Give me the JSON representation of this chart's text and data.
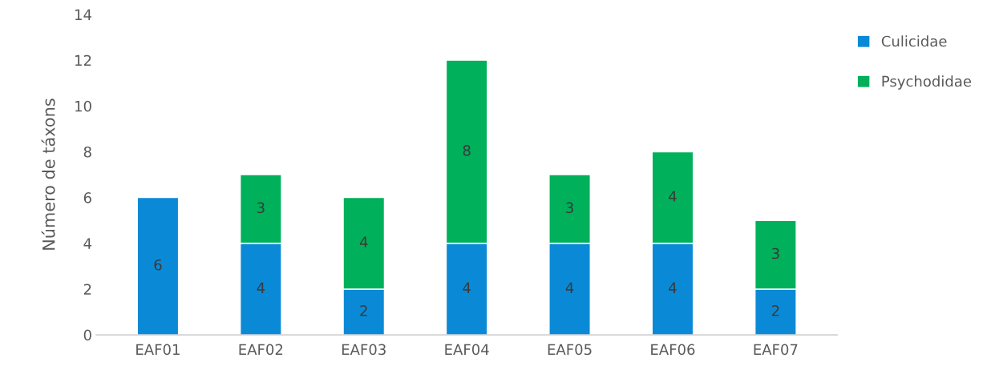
{
  "chart_data": {
    "type": "bar",
    "stacked": true,
    "ylabel": "Número de táxons",
    "categories": [
      "EAF01",
      "EAF02",
      "EAF03",
      "EAF04",
      "EAF05",
      "EAF06",
      "EAF07"
    ],
    "series": [
      {
        "name": "Culicidae",
        "color": "#0a8ad6",
        "values": [
          6,
          4,
          2,
          4,
          4,
          4,
          2
        ]
      },
      {
        "name": "Psychodidae",
        "color": "#00b05a",
        "values": [
          null,
          3,
          4,
          8,
          3,
          4,
          3
        ]
      }
    ],
    "ylim": [
      0,
      14
    ],
    "yticks": [
      0,
      2,
      4,
      6,
      8,
      10,
      12,
      14
    ],
    "grid": false,
    "legend": "right",
    "data_labels": true
  }
}
